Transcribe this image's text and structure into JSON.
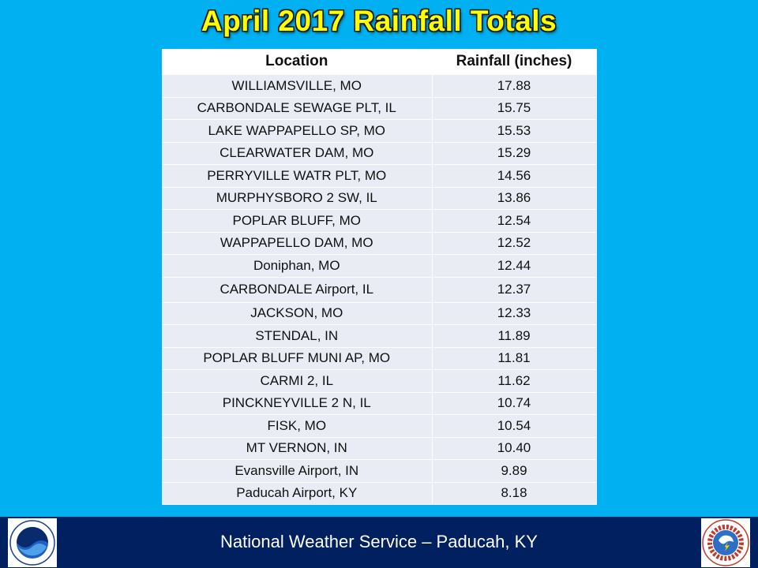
{
  "title": "April 2017 Rainfall Totals",
  "table": {
    "headers": [
      "Location",
      "Rainfall (inches)"
    ],
    "rows": [
      [
        "WILLIAMSVILLE, MO",
        "17.88"
      ],
      [
        "CARBONDALE  SEWAGE PLT, IL",
        "15.75"
      ],
      [
        "LAKE WAPPAPELLO SP, MO",
        "15.53"
      ],
      [
        "CLEARWATER DAM, MO",
        "15.29"
      ],
      [
        "PERRYVILLE WATR PLT, MO",
        "14.56"
      ],
      [
        "MURPHYSBORO 2 SW, IL",
        "13.86"
      ],
      [
        "POPLAR BLUFF, MO",
        "12.54"
      ],
      [
        "WAPPAPELLO DAM, MO",
        "12.52"
      ],
      [
        "Doniphan, MO",
        "12.44"
      ],
      [
        "CARBONDALE Airport, IL",
        "12.37"
      ],
      [
        "JACKSON, MO",
        "12.33"
      ],
      [
        "STENDAL, IN",
        "11.89"
      ],
      [
        "POPLAR BLUFF MUNI AP, MO",
        "11.81"
      ],
      [
        "CARMI 2, IL",
        "11.62"
      ],
      [
        "PINCKNEYVILLE 2 N, IL",
        "10.74"
      ],
      [
        "FISK, MO",
        "10.54"
      ],
      [
        "MT VERNON, IN",
        "10.40"
      ],
      [
        "Evansville Airport, IN",
        "9.89"
      ],
      [
        "Paducah Airport, KY",
        "8.18"
      ]
    ]
  },
  "footer": {
    "text": "National Weather Service – Paducah, KY",
    "left_logo": "noaa-logo-icon",
    "right_logo": "nws-logo-icon"
  },
  "colors": {
    "background": "#00b0f0",
    "title": "#ffff00",
    "footer": "#002060",
    "row": "#e9ecf4"
  }
}
